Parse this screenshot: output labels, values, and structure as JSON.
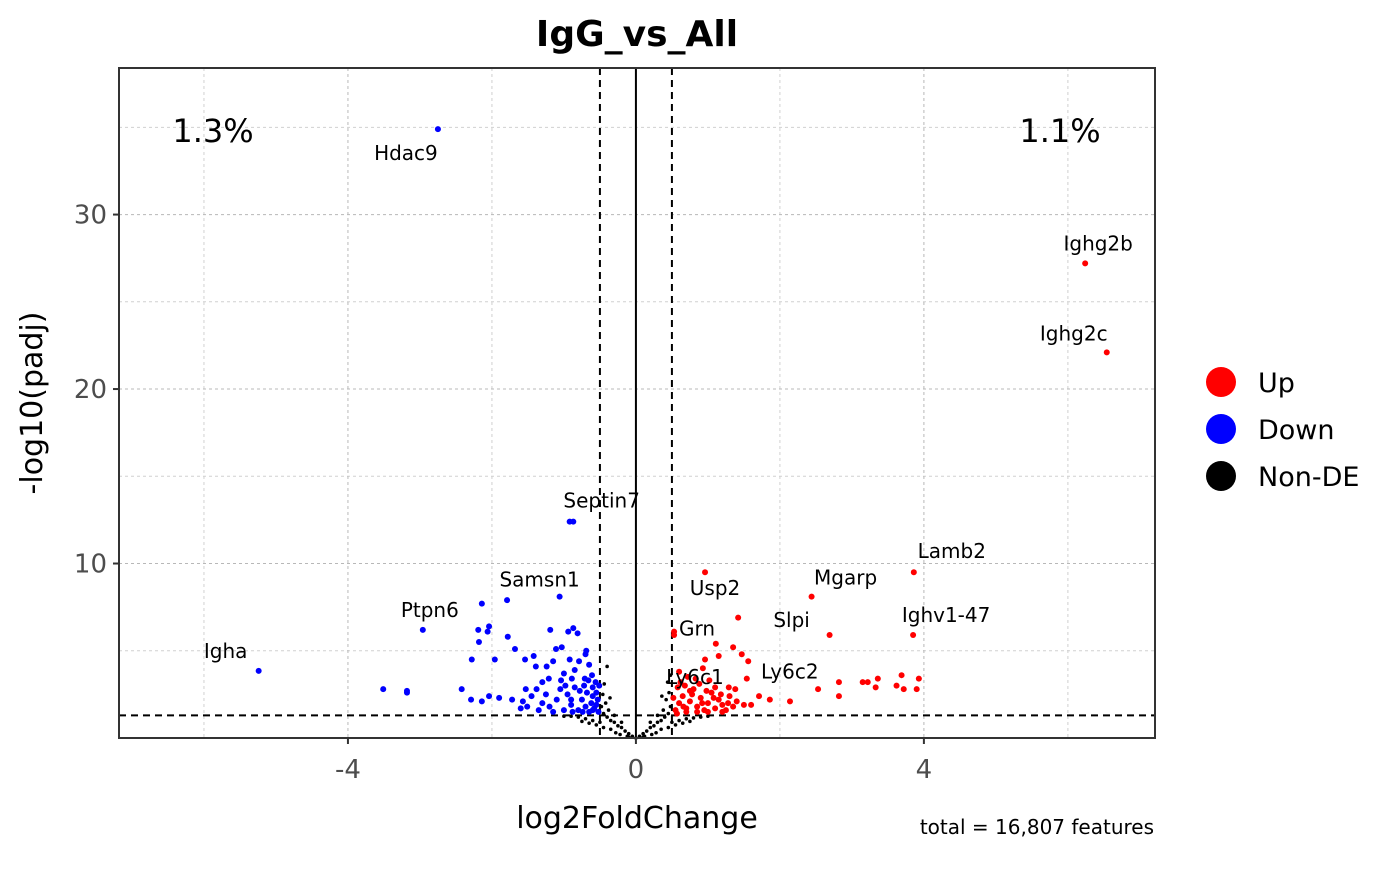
{
  "chart_data": {
    "type": "scatter",
    "title": "IgG_vs_All",
    "xlabel": "log2FoldChange",
    "ylabel": "-log10(padj)",
    "xlim": [
      -7.18,
      7.21
    ],
    "ylim": [
      0,
      38.4
    ],
    "x_ticks": [
      -4,
      0,
      4
    ],
    "x_tick_labels": [
      "-4",
      "0",
      "4"
    ],
    "y_ticks": [
      10,
      20,
      30
    ],
    "y_tick_labels": [
      "10",
      "20",
      "30"
    ],
    "x_minor": [
      -6,
      -2,
      2,
      6
    ],
    "y_minor": [
      5,
      15,
      25,
      35
    ],
    "grid": true,
    "fc_threshold": 0.5,
    "padj_threshold_line": 1.3,
    "pct_down": "1.3%",
    "pct_up": "1.1%",
    "caption": "total = 16,807 features",
    "legend": {
      "position": "right",
      "entries": [
        {
          "name": "Up",
          "color": "#ff0000"
        },
        {
          "name": "Down",
          "color": "#0000ff"
        },
        {
          "name": "Non-DE",
          "color": "#000000"
        }
      ]
    },
    "labeled_points": [
      {
        "gene": "Hdac9",
        "x": -2.75,
        "y": 34.9,
        "group": "Down"
      },
      {
        "gene": "Ighg2b",
        "x": 6.24,
        "y": 27.2,
        "group": "Up"
      },
      {
        "gene": "Ighg2c",
        "x": 6.54,
        "y": 22.1,
        "group": "Up"
      },
      {
        "gene": "Septin7",
        "x": -0.92,
        "y": 12.4,
        "group": "Down"
      },
      {
        "gene": "Lamb2",
        "x": 3.86,
        "y": 9.5,
        "group": "Up"
      },
      {
        "gene": "Usp2",
        "x": 0.96,
        "y": 9.5,
        "group": "Up"
      },
      {
        "gene": "Mgarp",
        "x": 2.44,
        "y": 8.1,
        "group": "Up"
      },
      {
        "gene": "Slpi",
        "x": 2.69,
        "y": 5.9,
        "group": "Up"
      },
      {
        "gene": "Ighv1-47",
        "x": 3.85,
        "y": 5.9,
        "group": "Up"
      },
      {
        "gene": "Grn",
        "x": 0.53,
        "y": 6.1,
        "group": "Up"
      },
      {
        "gene": "Samsn1",
        "x": -1.06,
        "y": 8.1,
        "group": "Down"
      },
      {
        "gene": "Ptpn6",
        "x": -2.96,
        "y": 6.2,
        "group": "Down"
      },
      {
        "gene": "Igha",
        "x": -5.24,
        "y": 3.85,
        "group": "Down"
      },
      {
        "gene": "Ly6c1",
        "x": 0.75,
        "y": 2.7,
        "group": "Up"
      },
      {
        "gene": "Ly6c2",
        "x": 1.54,
        "y": 3.4,
        "group": "Up"
      }
    ],
    "down_points": [
      [
        -0.87,
        12.4
      ],
      [
        -2.14,
        7.7
      ],
      [
        -1.79,
        7.9
      ],
      [
        -2.19,
        6.2
      ],
      [
        -2.04,
        6.4
      ],
      [
        -2.06,
        6.1
      ],
      [
        -2.18,
        5.5
      ],
      [
        -1.78,
        5.8
      ],
      [
        -1.19,
        6.2
      ],
      [
        -0.94,
        6.1
      ],
      [
        -0.87,
        6.3
      ],
      [
        -0.81,
        6.0
      ],
      [
        -1.68,
        5.1
      ],
      [
        -2.28,
        4.5
      ],
      [
        -1.96,
        4.5
      ],
      [
        -1.54,
        4.5
      ],
      [
        -1.42,
        4.7
      ],
      [
        -1.11,
        5.1
      ],
      [
        -1.03,
        5.2
      ],
      [
        -0.69,
        5.0
      ],
      [
        -1.39,
        4.1
      ],
      [
        -1.24,
        4.1
      ],
      [
        -1.15,
        4.4
      ],
      [
        -0.92,
        4.5
      ],
      [
        -0.79,
        4.4
      ],
      [
        -2.42,
        2.8
      ],
      [
        -3.51,
        2.8
      ],
      [
        -3.18,
        2.6
      ],
      [
        -3.18,
        2.7
      ],
      [
        -2.29,
        2.2
      ],
      [
        -2.14,
        2.1
      ],
      [
        -2.04,
        2.4
      ],
      [
        -1.9,
        2.3
      ],
      [
        -1.72,
        2.2
      ],
      [
        -1.57,
        2.1
      ],
      [
        -1.51,
        1.8
      ],
      [
        -1.53,
        2.8
      ],
      [
        -1.38,
        2.8
      ],
      [
        -1.21,
        3.4
      ],
      [
        -1.04,
        3.3
      ],
      [
        -0.89,
        3.4
      ],
      [
        -0.71,
        3.4
      ],
      [
        -0.61,
        3.6
      ],
      [
        -0.51,
        3.0
      ],
      [
        -0.7,
        4.8
      ],
      [
        -0.65,
        4.2
      ],
      [
        -0.85,
        3.9
      ],
      [
        -1.0,
        3.7
      ],
      [
        -1.3,
        3.2
      ],
      [
        -1.45,
        2.4
      ],
      [
        -1.3,
        2.0
      ],
      [
        -1.2,
        1.8
      ],
      [
        -1.1,
        2.2
      ],
      [
        -1.0,
        1.6
      ],
      [
        -0.95,
        2.5
      ],
      [
        -0.9,
        1.9
      ],
      [
        -0.85,
        2.9
      ],
      [
        -0.8,
        1.6
      ],
      [
        -0.75,
        2.2
      ],
      [
        -0.7,
        1.8
      ],
      [
        -0.68,
        2.6
      ],
      [
        -0.65,
        1.5
      ],
      [
        -0.62,
        2.0
      ],
      [
        -0.6,
        2.4
      ],
      [
        -0.58,
        1.7
      ],
      [
        -0.55,
        1.9
      ],
      [
        -0.53,
        2.2
      ],
      [
        -0.52,
        1.5
      ],
      [
        -1.15,
        1.5
      ],
      [
        -1.35,
        1.6
      ],
      [
        -1.05,
        2.8
      ],
      [
        -0.9,
        2.2
      ],
      [
        -0.78,
        2.7
      ],
      [
        -0.72,
        3.0
      ],
      [
        -0.6,
        2.9
      ],
      [
        -0.55,
        2.6
      ],
      [
        -1.25,
        2.5
      ],
      [
        -0.98,
        3.0
      ],
      [
        -0.66,
        3.3
      ],
      [
        -0.56,
        3.2
      ],
      [
        -1.6,
        1.7
      ],
      [
        -0.88,
        1.5
      ],
      [
        -0.74,
        1.5
      ],
      [
        -0.6,
        1.6
      ]
    ],
    "up_points": [
      [
        1.42,
        6.9
      ],
      [
        0.53,
        5.9
      ],
      [
        1.11,
        5.4
      ],
      [
        1.35,
        5.2
      ],
      [
        1.47,
        4.8
      ],
      [
        1.56,
        4.4
      ],
      [
        0.96,
        4.5
      ],
      [
        1.15,
        4.7
      ],
      [
        0.93,
        4.0
      ],
      [
        1.38,
        2.8
      ],
      [
        1.71,
        2.4
      ],
      [
        1.86,
        2.2
      ],
      [
        2.14,
        2.1
      ],
      [
        2.53,
        2.8
      ],
      [
        2.82,
        3.2
      ],
      [
        2.82,
        2.4
      ],
      [
        3.15,
        3.2
      ],
      [
        3.22,
        3.2
      ],
      [
        3.36,
        3.4
      ],
      [
        3.33,
        2.9
      ],
      [
        3.62,
        3.0
      ],
      [
        3.69,
        3.6
      ],
      [
        3.72,
        2.8
      ],
      [
        3.9,
        2.8
      ],
      [
        3.93,
        3.4
      ],
      [
        0.6,
        3.8
      ],
      [
        0.83,
        3.4
      ],
      [
        1.1,
        2.9
      ],
      [
        1.29,
        2.9
      ],
      [
        1.6,
        1.9
      ],
      [
        1.5,
        1.9
      ],
      [
        0.55,
        1.6
      ],
      [
        0.6,
        2.0
      ],
      [
        0.65,
        2.4
      ],
      [
        0.7,
        1.7
      ],
      [
        0.75,
        2.1
      ],
      [
        0.8,
        2.8
      ],
      [
        0.85,
        1.8
      ],
      [
        0.9,
        2.3
      ],
      [
        0.95,
        1.6
      ],
      [
        1.0,
        2.0
      ],
      [
        1.05,
        2.6
      ],
      [
        1.1,
        1.7
      ],
      [
        1.15,
        2.2
      ],
      [
        1.2,
        1.9
      ],
      [
        1.25,
        1.6
      ],
      [
        1.3,
        2.4
      ],
      [
        1.35,
        1.8
      ],
      [
        1.4,
        2.1
      ],
      [
        0.58,
        2.9
      ],
      [
        0.62,
        3.2
      ],
      [
        0.68,
        3.0
      ],
      [
        0.72,
        3.5
      ],
      [
        0.88,
        3.1
      ],
      [
        0.98,
        2.7
      ],
      [
        1.02,
        3.3
      ],
      [
        1.18,
        2.5
      ],
      [
        0.52,
        2.3
      ],
      [
        0.57,
        1.4
      ],
      [
        0.7,
        1.5
      ],
      [
        0.85,
        1.5
      ],
      [
        1.0,
        1.5
      ],
      [
        1.2,
        1.5
      ],
      [
        0.78,
        2.5
      ],
      [
        0.92,
        2.0
      ],
      [
        1.08,
        2.3
      ],
      [
        1.28,
        2.0
      ],
      [
        0.66,
        1.8
      ]
    ],
    "nonde_points": [
      [
        0,
        0
      ],
      [
        0.05,
        0.1
      ],
      [
        -0.05,
        0.1
      ],
      [
        0.1,
        0.25
      ],
      [
        -0.1,
        0.25
      ],
      [
        0.15,
        0.4
      ],
      [
        -0.15,
        0.4
      ],
      [
        0.2,
        0.6
      ],
      [
        -0.2,
        0.6
      ],
      [
        0.25,
        0.7
      ],
      [
        -0.25,
        0.7
      ],
      [
        0.3,
        0.9
      ],
      [
        -0.3,
        0.9
      ],
      [
        0.35,
        1.0
      ],
      [
        -0.35,
        1.0
      ],
      [
        0.4,
        1.2
      ],
      [
        -0.4,
        1.2
      ],
      [
        0.45,
        1.4
      ],
      [
        -0.45,
        1.4
      ],
      [
        0.48,
        1.8
      ],
      [
        -0.48,
        1.8
      ],
      [
        0.42,
        2.2
      ],
      [
        -0.42,
        2.0
      ],
      [
        0.46,
        2.6
      ],
      [
        -0.46,
        2.5
      ],
      [
        0.38,
        1.6
      ],
      [
        -0.38,
        1.6
      ],
      [
        0.3,
        1.3
      ],
      [
        -0.3,
        1.3
      ],
      [
        0.2,
        0.9
      ],
      [
        -0.2,
        0.9
      ],
      [
        0.5,
        0.9
      ],
      [
        -0.5,
        0.9
      ],
      [
        0.6,
        1.0
      ],
      [
        -0.6,
        1.0
      ],
      [
        0.7,
        1.1
      ],
      [
        -0.7,
        1.1
      ],
      [
        0.8,
        1.15
      ],
      [
        -0.8,
        1.2
      ],
      [
        0.9,
        1.2
      ],
      [
        -0.9,
        1.25
      ],
      [
        1.0,
        1.25
      ],
      [
        -1.0,
        1.25
      ],
      [
        0.55,
        0.75
      ],
      [
        -0.55,
        0.75
      ],
      [
        0.45,
        0.6
      ],
      [
        -0.45,
        0.6
      ],
      [
        0.35,
        0.5
      ],
      [
        -0.35,
        0.5
      ],
      [
        0.65,
        0.85
      ],
      [
        -0.65,
        0.85
      ],
      [
        0.75,
        0.95
      ],
      [
        -0.75,
        0.95
      ],
      [
        0.12,
        0.1
      ],
      [
        -0.12,
        0.1
      ],
      [
        0.28,
        0.3
      ],
      [
        -0.28,
        0.3
      ],
      [
        0.44,
        3.2
      ],
      [
        -0.44,
        3.1
      ],
      [
        0.48,
        3.6
      ],
      [
        0.36,
        2.4
      ],
      [
        -0.36,
        2.3
      ],
      [
        0.1,
        0.05
      ],
      [
        -0.1,
        0.05
      ],
      [
        0.22,
        0.2
      ],
      [
        -0.22,
        0.2
      ],
      [
        -0.4,
        4.1
      ]
    ]
  }
}
